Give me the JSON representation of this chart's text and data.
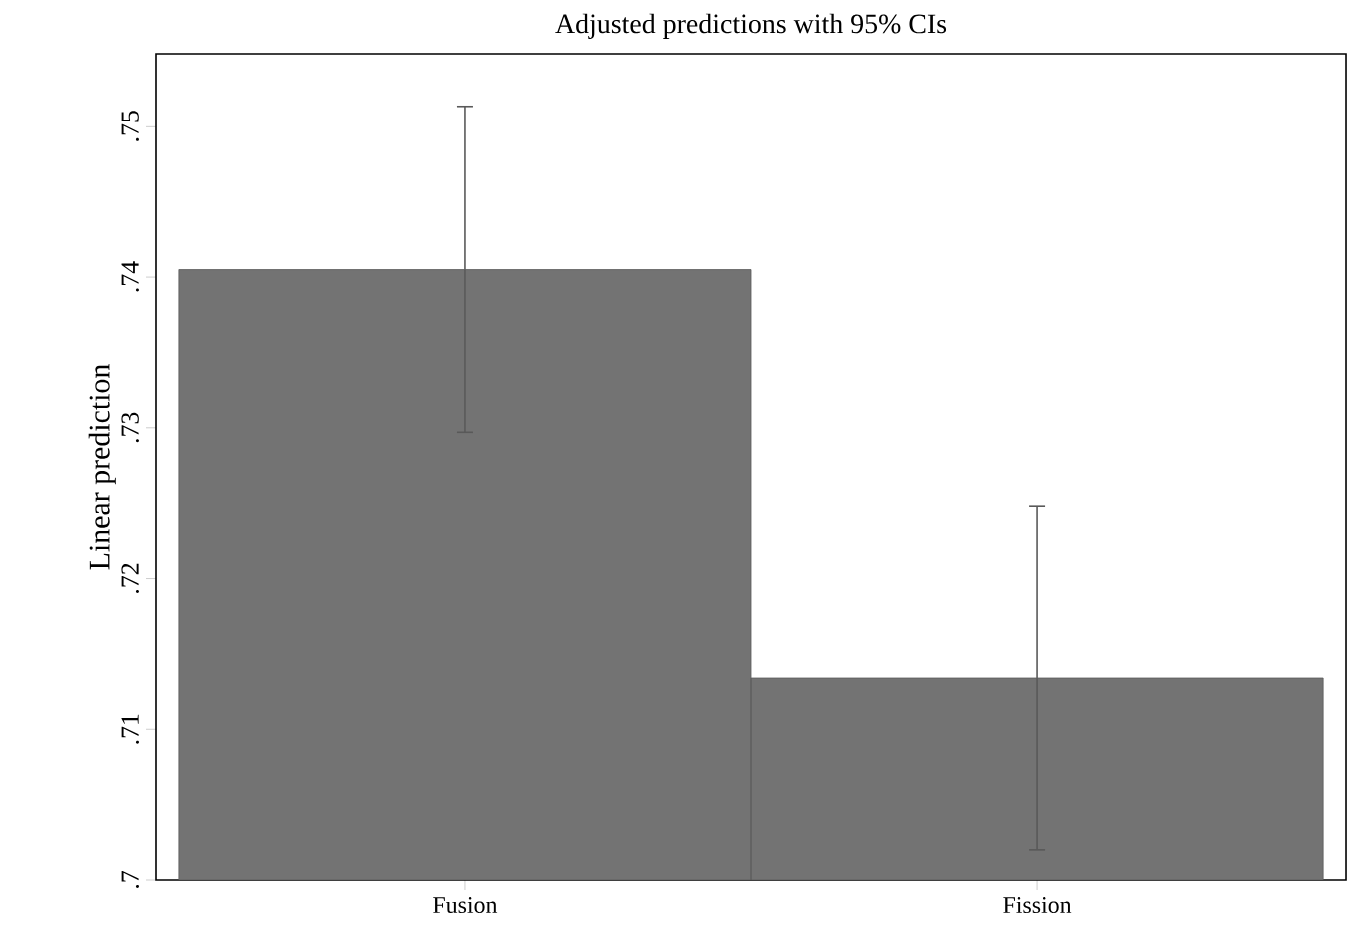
{
  "chart_data": {
    "type": "bar",
    "title": "Adjusted predictions with 95% CIs",
    "ylabel": "Linear prediction",
    "categories": [
      "Fusion",
      "Fission"
    ],
    "values": [
      0.7405,
      0.7134
    ],
    "errors": [
      0.0108,
      0.0114
    ],
    "color": "#737373",
    "ylim": [
      0.7,
      0.7548
    ],
    "yticks": [
      {
        "value": 0.7,
        "label": ".7"
      },
      {
        "value": 0.71,
        "label": ".71"
      },
      {
        "value": 0.72,
        "label": ".72"
      },
      {
        "value": 0.73,
        "label": ".73"
      },
      {
        "value": 0.74,
        "label": ".74"
      },
      {
        "value": 0.75,
        "label": ".75"
      }
    ],
    "grid": false
  }
}
